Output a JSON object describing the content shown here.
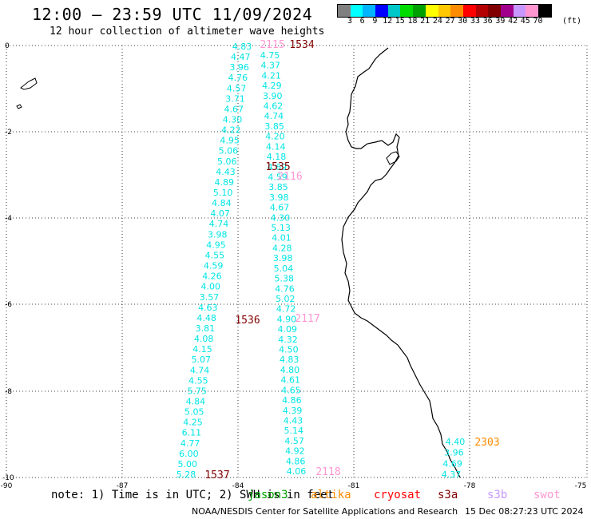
{
  "header": {
    "title": "12:00 – 23:59 UTC 11/09/2024",
    "subtitle": "12 hour collection of altimeter wave heights"
  },
  "scale": {
    "unit": "(ft)",
    "colors": [
      "#808080",
      "#00ffff",
      "#00b4ff",
      "#0000ff",
      "#00c8c8",
      "#00dc00",
      "#00a000",
      "#ffff00",
      "#ffc800",
      "#ff8c00",
      "#ff0000",
      "#b40000",
      "#800000",
      "#a0008c",
      "#c896ff",
      "#ff96d2",
      "#000000"
    ],
    "labels": [
      "3",
      "6",
      "9",
      "12",
      "15",
      "18",
      "21",
      "24",
      "27",
      "30",
      "33",
      "36",
      "39",
      "42",
      "45",
      "70"
    ]
  },
  "axes": {
    "x_ticks": [
      "-90",
      "-87",
      "-84",
      "-81",
      "-78",
      "-75"
    ],
    "y_ticks": [
      "0",
      "-2",
      "-4",
      "-6",
      "-8",
      "-10"
    ]
  },
  "passes": [
    {
      "label": "1534",
      "color": "#800000"
    },
    {
      "label": "2115",
      "color": "#ff96d2"
    },
    {
      "label": "1535",
      "color": "#800000"
    },
    {
      "label": "2116",
      "color": "#ff96d2"
    },
    {
      "label": "1536",
      "color": "#800000"
    },
    {
      "label": "2117",
      "color": "#ff96d2"
    },
    {
      "label": "1537",
      "color": "#800000"
    },
    {
      "label": "2118",
      "color": "#ff96d2"
    },
    {
      "label": "2303",
      "color": "#ff8c00"
    }
  ],
  "tracks": {
    "left": [
      "4.83",
      "4.47",
      "3.96",
      "4.76",
      "4.57",
      "3.71",
      "4.67",
      "4.30",
      "4.22",
      "4.95",
      "5.06",
      "5.06",
      "4.43",
      "4.89",
      "5.10",
      "4.84",
      "4.07",
      "4.74",
      "3.98",
      "4.95",
      "4.55",
      "4.59",
      "4.26",
      "4.00",
      "3.57",
      "4.63",
      "4.48",
      "3.81",
      "4.08",
      "4.15",
      "5.07",
      "4.74",
      "4.55",
      "5.75",
      "4.84",
      "5.05",
      "4.25",
      "6.11",
      "4.77",
      "6.00",
      "5.00",
      "5.28"
    ],
    "right": [
      "4.75",
      "4.37",
      "4.21",
      "4.29",
      "3.90",
      "4.62",
      "4.74",
      "3.85",
      "4.20",
      "4.14",
      "4.18",
      "4.69",
      "4.59",
      "3.85",
      "3.98",
      "4.67",
      "4.30",
      "5.13",
      "4.01",
      "4.28",
      "3.98",
      "5.04",
      "5.38",
      "4.76",
      "5.02",
      "4.72",
      "4.90",
      "4.09",
      "4.32",
      "4.50",
      "4.83",
      "4.80",
      "4.61",
      "4.65",
      "4.86",
      "4.39",
      "4.43",
      "5.14",
      "4.57",
      "4.92",
      "4.86",
      "4.06"
    ],
    "east": [
      "4.40",
      "3.96",
      "4.69",
      "4.37"
    ]
  },
  "footer": {
    "note": "note: 1) Time is in UTC; 2) SWH is in feet",
    "satellites": [
      {
        "name": "jason3",
        "color": "#00a000"
      },
      {
        "name": "altika",
        "color": "#ff8c00"
      },
      {
        "name": "cryosat",
        "color": "#ff0000"
      },
      {
        "name": "s3a",
        "color": "#800000"
      },
      {
        "name": "s3b",
        "color": "#c896ff"
      },
      {
        "name": "swot",
        "color": "#ff96d2"
      }
    ],
    "center": "NOAA/NESDIS Center for Satellite Applications and Research",
    "date": "15 Dec 08:27:23 UTC 2024"
  }
}
